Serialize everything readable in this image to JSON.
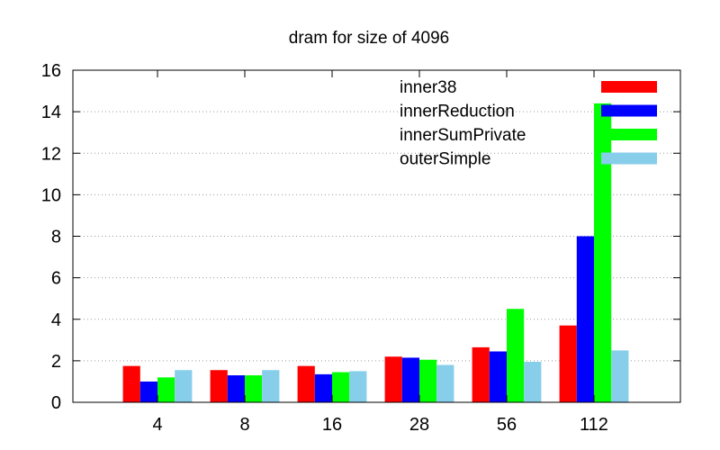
{
  "chart_data": {
    "type": "bar",
    "title": "dram for size of 4096",
    "xlabel": "",
    "ylabel": "",
    "categories": [
      "4",
      "8",
      "16",
      "28",
      "56",
      "112"
    ],
    "ylim": [
      0,
      16
    ],
    "yticks": [
      "0",
      "2",
      "4",
      "6",
      "8",
      "10",
      "12",
      "14",
      "16"
    ],
    "grid": "horizontal dotted",
    "legend_position": "top-right",
    "series": [
      {
        "name": "inner38",
        "color": "#ff0000",
        "values": [
          1.75,
          1.55,
          1.75,
          2.2,
          2.65,
          3.7
        ]
      },
      {
        "name": "innerReduction",
        "color": "#0000ff",
        "values": [
          1.0,
          1.3,
          1.35,
          2.15,
          2.45,
          8.0
        ]
      },
      {
        "name": "innerSumPrivate",
        "color": "#00ff00",
        "values": [
          1.2,
          1.3,
          1.45,
          2.05,
          4.5,
          14.4
        ]
      },
      {
        "name": "outerSimple",
        "color": "#87ceeb",
        "values": [
          1.55,
          1.55,
          1.5,
          1.8,
          1.95,
          2.5
        ]
      }
    ]
  }
}
